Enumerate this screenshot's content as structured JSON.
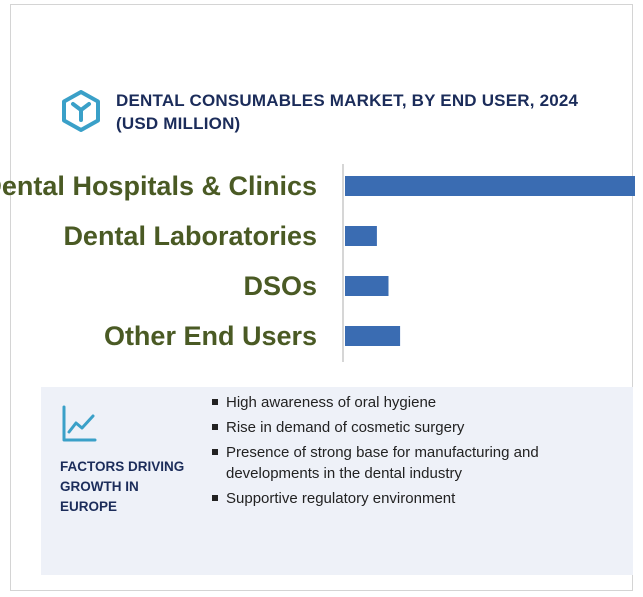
{
  "title": {
    "line1": "DENTAL CONSUMABLES MARKET, BY END USER, 2024",
    "line2": "(USD MILLION)"
  },
  "icons": {
    "logo": "hexagon-y-logo-icon",
    "factors": "trend-line-chart-icon"
  },
  "colors": {
    "bar": "#3a6cb2",
    "category_label": "#4a5a24",
    "title": "#1b2c5a",
    "logo": "#3aa0c8",
    "panel": "#eef1f8"
  },
  "chart_data": {
    "type": "bar",
    "orientation": "horizontal",
    "categories": [
      "Dental Hospitals & Clinics",
      "Dental Laboratories",
      "DSOs",
      "Other End Users"
    ],
    "values": [
      100,
      11,
      15,
      19
    ],
    "xlim": [
      0,
      100
    ],
    "grid": false,
    "legend": "none",
    "title": "DENTAL CONSUMABLES MARKET, BY END USER, 2024 (USD MILLION)"
  },
  "factors": {
    "title_lines": [
      "FACTORS DRIVING",
      "GROWTH IN",
      "EUROPE"
    ],
    "items": [
      "High awareness of oral hygiene",
      "Rise in demand of cosmetic surgery",
      "Presence of strong base for manufacturing and developments in the dental industry",
      "Supportive regulatory environment"
    ]
  }
}
